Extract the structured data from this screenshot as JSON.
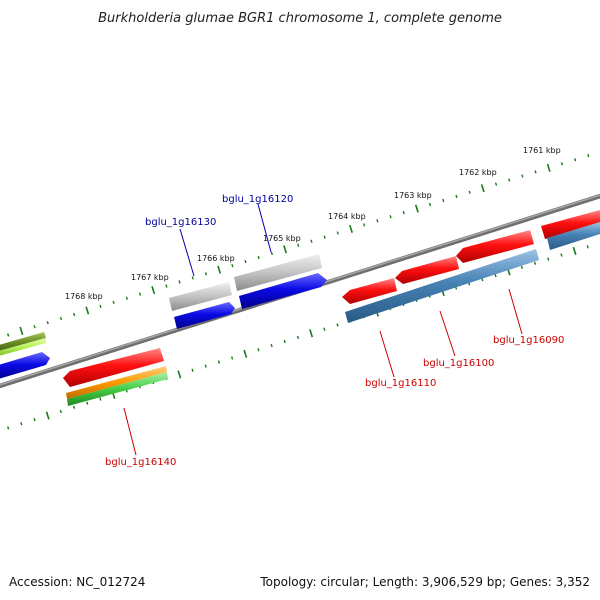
{
  "title": "Burkholderia glumae BGR1 chromosome 1, complete genome",
  "footer": {
    "accession": "Accession: NC_012724",
    "summary": "Topology: circular; Length: 3,906,529 bp; Genes: 3,352"
  },
  "colors": {
    "backbone": "#808080",
    "tick": "#1a7a1a",
    "red": "#ff1010",
    "blue": "#0a0ae6",
    "gray": "#bdbdbd",
    "steel": "#4682b4",
    "orange": "#ff9900",
    "green": "#44cc44",
    "olive": "#6b8e23",
    "lime": "#b4f050",
    "label_red": "#cc0000",
    "label_blue": "#000099"
  },
  "ticks": [
    {
      "label": "1761 kbp"
    },
    {
      "label": "1762 kbp"
    },
    {
      "label": "1763 kbp"
    },
    {
      "label": "1764 kbp"
    },
    {
      "label": "1765 kbp"
    },
    {
      "label": "1766 kbp"
    },
    {
      "label": "1767 kbp"
    },
    {
      "label": "1768 kbp"
    }
  ],
  "gene_labels": [
    {
      "name": "bglu_1g16120",
      "strand": "forward"
    },
    {
      "name": "bglu_1g16130",
      "strand": "forward"
    },
    {
      "name": "bglu_1g16090",
      "strand": "reverse"
    },
    {
      "name": "bglu_1g16100",
      "strand": "reverse"
    },
    {
      "name": "bglu_1g16110",
      "strand": "reverse"
    },
    {
      "name": "bglu_1g16140",
      "strand": "reverse"
    }
  ]
}
